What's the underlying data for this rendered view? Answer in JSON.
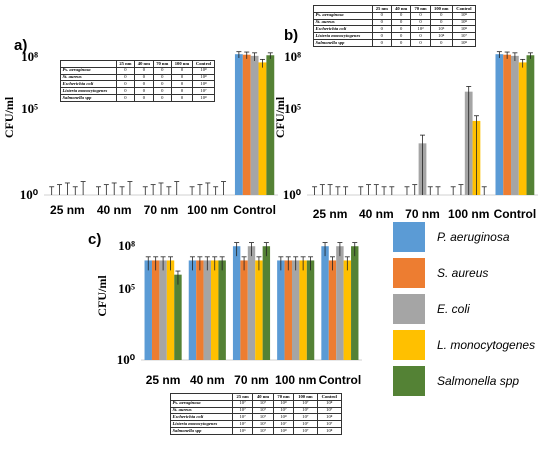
{
  "legend": [
    {
      "name": "P. aeruginosa",
      "color": "#5b9bd5"
    },
    {
      "name": "S.  aureus",
      "color": "#ed7d31"
    },
    {
      "name": "E. coli",
      "color": "#a5a5a5"
    },
    {
      "name": "L. monocytogenes",
      "color": "#ffc000"
    },
    {
      "name": "Salmonella spp",
      "color": "#548235"
    }
  ],
  "chart_data": [
    {
      "type": "bar",
      "panel": "a)",
      "ylabel": "CFU/ml",
      "yscale": "log",
      "ylim": [
        1,
        1000000000
      ],
      "yticks": [
        {
          "v": 1,
          "label": "10⁰"
        },
        {
          "v": 100000,
          "label": "10⁵"
        },
        {
          "v": 100000000,
          "label": "10⁸"
        }
      ],
      "categories": [
        "25 nm",
        "40 nm",
        "70 nm",
        "100 nm",
        "Control"
      ],
      "series": [
        {
          "name": "P. aeruginosa",
          "values": [
            1,
            1,
            1,
            1,
            150000000
          ],
          "errors": [
            2,
            2,
            2,
            2,
            60000000
          ]
        },
        {
          "name": "S.  aureus",
          "values": [
            1,
            1,
            1,
            1,
            140000000
          ],
          "errors": [
            3,
            3,
            3,
            3,
            60000000
          ]
        },
        {
          "name": "E. coli",
          "values": [
            1,
            1,
            1,
            1,
            120000000
          ],
          "errors": [
            4,
            4,
            4,
            4,
            60000000
          ]
        },
        {
          "name": "L. monocytogenes",
          "values": [
            1,
            1,
            1,
            1,
            50000000
          ],
          "errors": [
            2,
            2,
            2,
            2,
            25000000
          ]
        },
        {
          "name": "Salmonella spp",
          "values": [
            1,
            1,
            1,
            1,
            130000000
          ],
          "errors": [
            5,
            5,
            5,
            5,
            50000000
          ]
        }
      ]
    },
    {
      "type": "bar",
      "panel": "b)",
      "ylabel": "CFU/ml",
      "yscale": "log",
      "ylim": [
        1,
        1000000000
      ],
      "yticks": [
        {
          "v": 1,
          "label": "10⁰"
        },
        {
          "v": 100000,
          "label": "10⁵"
        },
        {
          "v": 100000000,
          "label": "10⁸"
        }
      ],
      "categories": [
        "25 nm",
        "40 nm",
        "70 nm",
        "100 nm",
        "Control"
      ],
      "series": [
        {
          "name": "P. aeruginosa",
          "values": [
            1,
            1,
            1,
            1,
            150000000
          ],
          "errors": [
            2,
            2,
            2,
            2,
            60000000
          ]
        },
        {
          "name": "S.  aureus",
          "values": [
            1,
            1,
            1,
            1,
            140000000
          ],
          "errors": [
            3,
            3,
            3,
            3,
            60000000
          ]
        },
        {
          "name": "E. coli",
          "values": [
            1,
            1,
            1000,
            1000000,
            120000000
          ],
          "errors": [
            3,
            3,
            2000,
            1000000,
            60000000
          ]
        },
        {
          "name": "L. monocytogenes",
          "values": [
            1,
            1,
            1,
            20000,
            50000000
          ],
          "errors": [
            2,
            2,
            2,
            20000,
            25000000
          ]
        },
        {
          "name": "Salmonella spp",
          "values": [
            1,
            1,
            1,
            1,
            130000000
          ],
          "errors": [
            2,
            2,
            2,
            2,
            50000000
          ]
        }
      ]
    },
    {
      "type": "bar",
      "panel": "c)",
      "ylabel": "CFU/ml",
      "yscale": "log",
      "ylim": [
        1,
        1000000000
      ],
      "yticks": [
        {
          "v": 1,
          "label": "10⁰"
        },
        {
          "v": 100000,
          "label": "10⁵"
        },
        {
          "v": 100000000,
          "label": "10⁸"
        }
      ],
      "categories": [
        "25 nm",
        "40 nm",
        "70 nm",
        "100 nm",
        "Control"
      ],
      "series": [
        {
          "name": "P. aeruginosa",
          "values": [
            10000000,
            10000000,
            100000000,
            10000000,
            100000000
          ],
          "errors": [
            8000000,
            8000000,
            80000000,
            8000000,
            80000000
          ]
        },
        {
          "name": "S.  aureus",
          "values": [
            10000000,
            10000000,
            10000000,
            10000000,
            10000000
          ],
          "errors": [
            8000000,
            8000000,
            8000000,
            8000000,
            8000000
          ]
        },
        {
          "name": "E. coli",
          "values": [
            10000000,
            10000000,
            100000000,
            10000000,
            100000000
          ],
          "errors": [
            8000000,
            8000000,
            80000000,
            8000000,
            80000000
          ]
        },
        {
          "name": "L. monocytogenes",
          "values": [
            10000000,
            10000000,
            10000000,
            10000000,
            10000000
          ],
          "errors": [
            8000000,
            8000000,
            8000000,
            8000000,
            8000000
          ]
        },
        {
          "name": "Salmonella spp",
          "values": [
            1000000,
            10000000,
            100000000,
            10000000,
            100000000
          ],
          "errors": [
            800000,
            8000000,
            80000000,
            8000000,
            80000000
          ]
        }
      ]
    }
  ],
  "tables": [
    {
      "header": [
        "",
        "25 nm",
        "40 nm",
        "70 nm",
        "100 nm",
        "Control"
      ],
      "rows": [
        [
          "Ps. aeruginosa",
          "0",
          "0",
          "0",
          "0",
          "10⁸"
        ],
        [
          "St. aureus",
          "0",
          "0",
          "0",
          "0",
          "10⁸"
        ],
        [
          "Escherichia coli",
          "0",
          "0",
          "0",
          "0",
          "10⁸"
        ],
        [
          "Listeria monocytogenes",
          "0",
          "0",
          "0",
          "0",
          "10⁷"
        ],
        [
          "Salmonella spp",
          "0",
          "0",
          "0",
          "0",
          "10⁸"
        ]
      ]
    },
    {
      "header": [
        "",
        "25 nm",
        "40 nm",
        "70 nm",
        "100 nm",
        "Control"
      ],
      "rows": [
        [
          "Ps. aeruginosa",
          "0",
          "0",
          "0",
          "0",
          "10⁸"
        ],
        [
          "St. aureus",
          "0",
          "0",
          "0",
          "0",
          "10⁸"
        ],
        [
          "Escherichia coli",
          "0",
          "0",
          "10³",
          "10⁶",
          "10⁸"
        ],
        [
          "Listeria monocytogenes",
          "0",
          "0",
          "0",
          "10⁴",
          "10⁷"
        ],
        [
          "Salmonella spp",
          "0",
          "0",
          "0",
          "0",
          "10⁸"
        ]
      ]
    },
    {
      "header": [
        "",
        "25 nm",
        "40 nm",
        "70 nm",
        "100 nm",
        "Control"
      ],
      "rows": [
        [
          "Ps. aeruginosa",
          "10⁷",
          "10⁷",
          "10⁸",
          "10⁷",
          "10⁸"
        ],
        [
          "St.  aureus",
          "10⁷",
          "10⁷",
          "10⁷",
          "10⁷",
          "10⁷"
        ],
        [
          "Escherichia coli",
          "10⁷",
          "10⁷",
          "10⁸",
          "10⁷",
          "10⁸"
        ],
        [
          "Listeria monocytogenes",
          "10⁷",
          "10⁷",
          "10⁷",
          "10⁷",
          "10⁷"
        ],
        [
          "Salmonella spp",
          "10⁶",
          "10⁷",
          "10⁸",
          "10⁷",
          "10⁸"
        ]
      ]
    }
  ]
}
